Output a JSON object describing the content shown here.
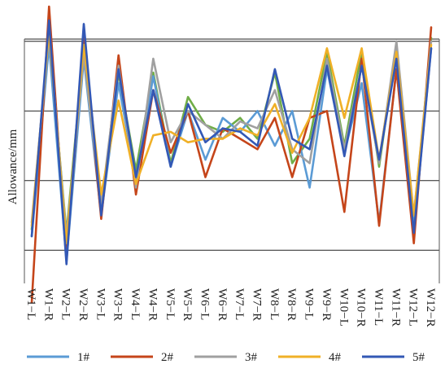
{
  "chart_data": {
    "type": "line",
    "title": "",
    "xlabel": "",
    "ylabel": "Allowance/mm",
    "ylim": [
      -0.5,
      3.5
    ],
    "grid": true,
    "gridlines": [
      0,
      1,
      2,
      3
    ],
    "legend_position": "bottom",
    "categories": [
      "W1−L",
      "W1−R",
      "W2−L",
      "W2−R",
      "W3−L",
      "W3−R",
      "W4−L",
      "W4−R",
      "W5−L",
      "W5−R",
      "W6−L",
      "W6−R",
      "W7−L",
      "W7−R",
      "W8−L",
      "W8−R",
      "W9−L",
      "W9−R",
      "W10−L",
      "W10−R",
      "W11−L",
      "W11−R",
      "W12−L",
      "W12−R"
    ],
    "series": [
      {
        "name": "1#",
        "color": "#5b9bd5",
        "values": [
          0.2,
          2.95,
          -0.15,
          2.75,
          0.5,
          2.4,
          1.0,
          2.5,
          1.2,
          2.0,
          1.3,
          1.9,
          1.7,
          2.0,
          1.5,
          2.0,
          0.9,
          2.6,
          1.4,
          2.4,
          0.4,
          2.6,
          0.3,
          2.9
        ]
      },
      {
        "name": "2#",
        "color": "#c5451a",
        "values": [
          -0.75,
          3.5,
          -0.1,
          3.05,
          0.45,
          2.8,
          0.8,
          2.3,
          1.4,
          2.0,
          1.05,
          1.75,
          1.6,
          1.45,
          1.9,
          1.05,
          1.9,
          2.0,
          0.55,
          2.75,
          0.35,
          2.6,
          0.1,
          3.2
        ]
      },
      {
        "name": "3#",
        "color": "#a0a0a0",
        "values": [
          0.4,
          3.1,
          0.2,
          2.8,
          0.65,
          2.65,
          0.9,
          2.75,
          1.55,
          2.0,
          1.8,
          1.6,
          1.85,
          1.75,
          2.3,
          1.45,
          1.25,
          2.75,
          1.45,
          2.65,
          1.25,
          3.0,
          0.5,
          3.0
        ]
      },
      {
        "name": "4#",
        "color": "#f0b027",
        "values": [
          0.35,
          3.15,
          0.1,
          2.95,
          0.8,
          2.15,
          0.95,
          1.65,
          1.7,
          1.55,
          1.6,
          1.6,
          1.75,
          1.65,
          2.1,
          1.4,
          1.9,
          2.9,
          1.9,
          2.9,
          1.3,
          2.85,
          0.5,
          2.95
        ]
      },
      {
        "name": "5#",
        "color": "#3358b5",
        "values": [
          0.2,
          3.3,
          -0.2,
          3.25,
          0.5,
          2.6,
          1.05,
          2.3,
          1.2,
          2.1,
          1.55,
          1.75,
          1.7,
          1.5,
          2.6,
          1.6,
          1.45,
          2.65,
          1.35,
          2.65,
          1.3,
          2.75,
          0.25,
          2.9
        ]
      }
    ],
    "extra_series_colors": {
      "green": "#70ad47"
    },
    "extra_series": [
      {
        "color": "#70ad47",
        "values": [
          0.3,
          3.05,
          0.25,
          2.9,
          0.5,
          2.55,
          1.15,
          2.55,
          1.25,
          2.2,
          1.8,
          1.7,
          1.9,
          1.6,
          2.55,
          1.25,
          1.6,
          2.85,
          1.5,
          2.85,
          1.2,
          2.95,
          0.3,
          3.05
        ]
      }
    ]
  }
}
